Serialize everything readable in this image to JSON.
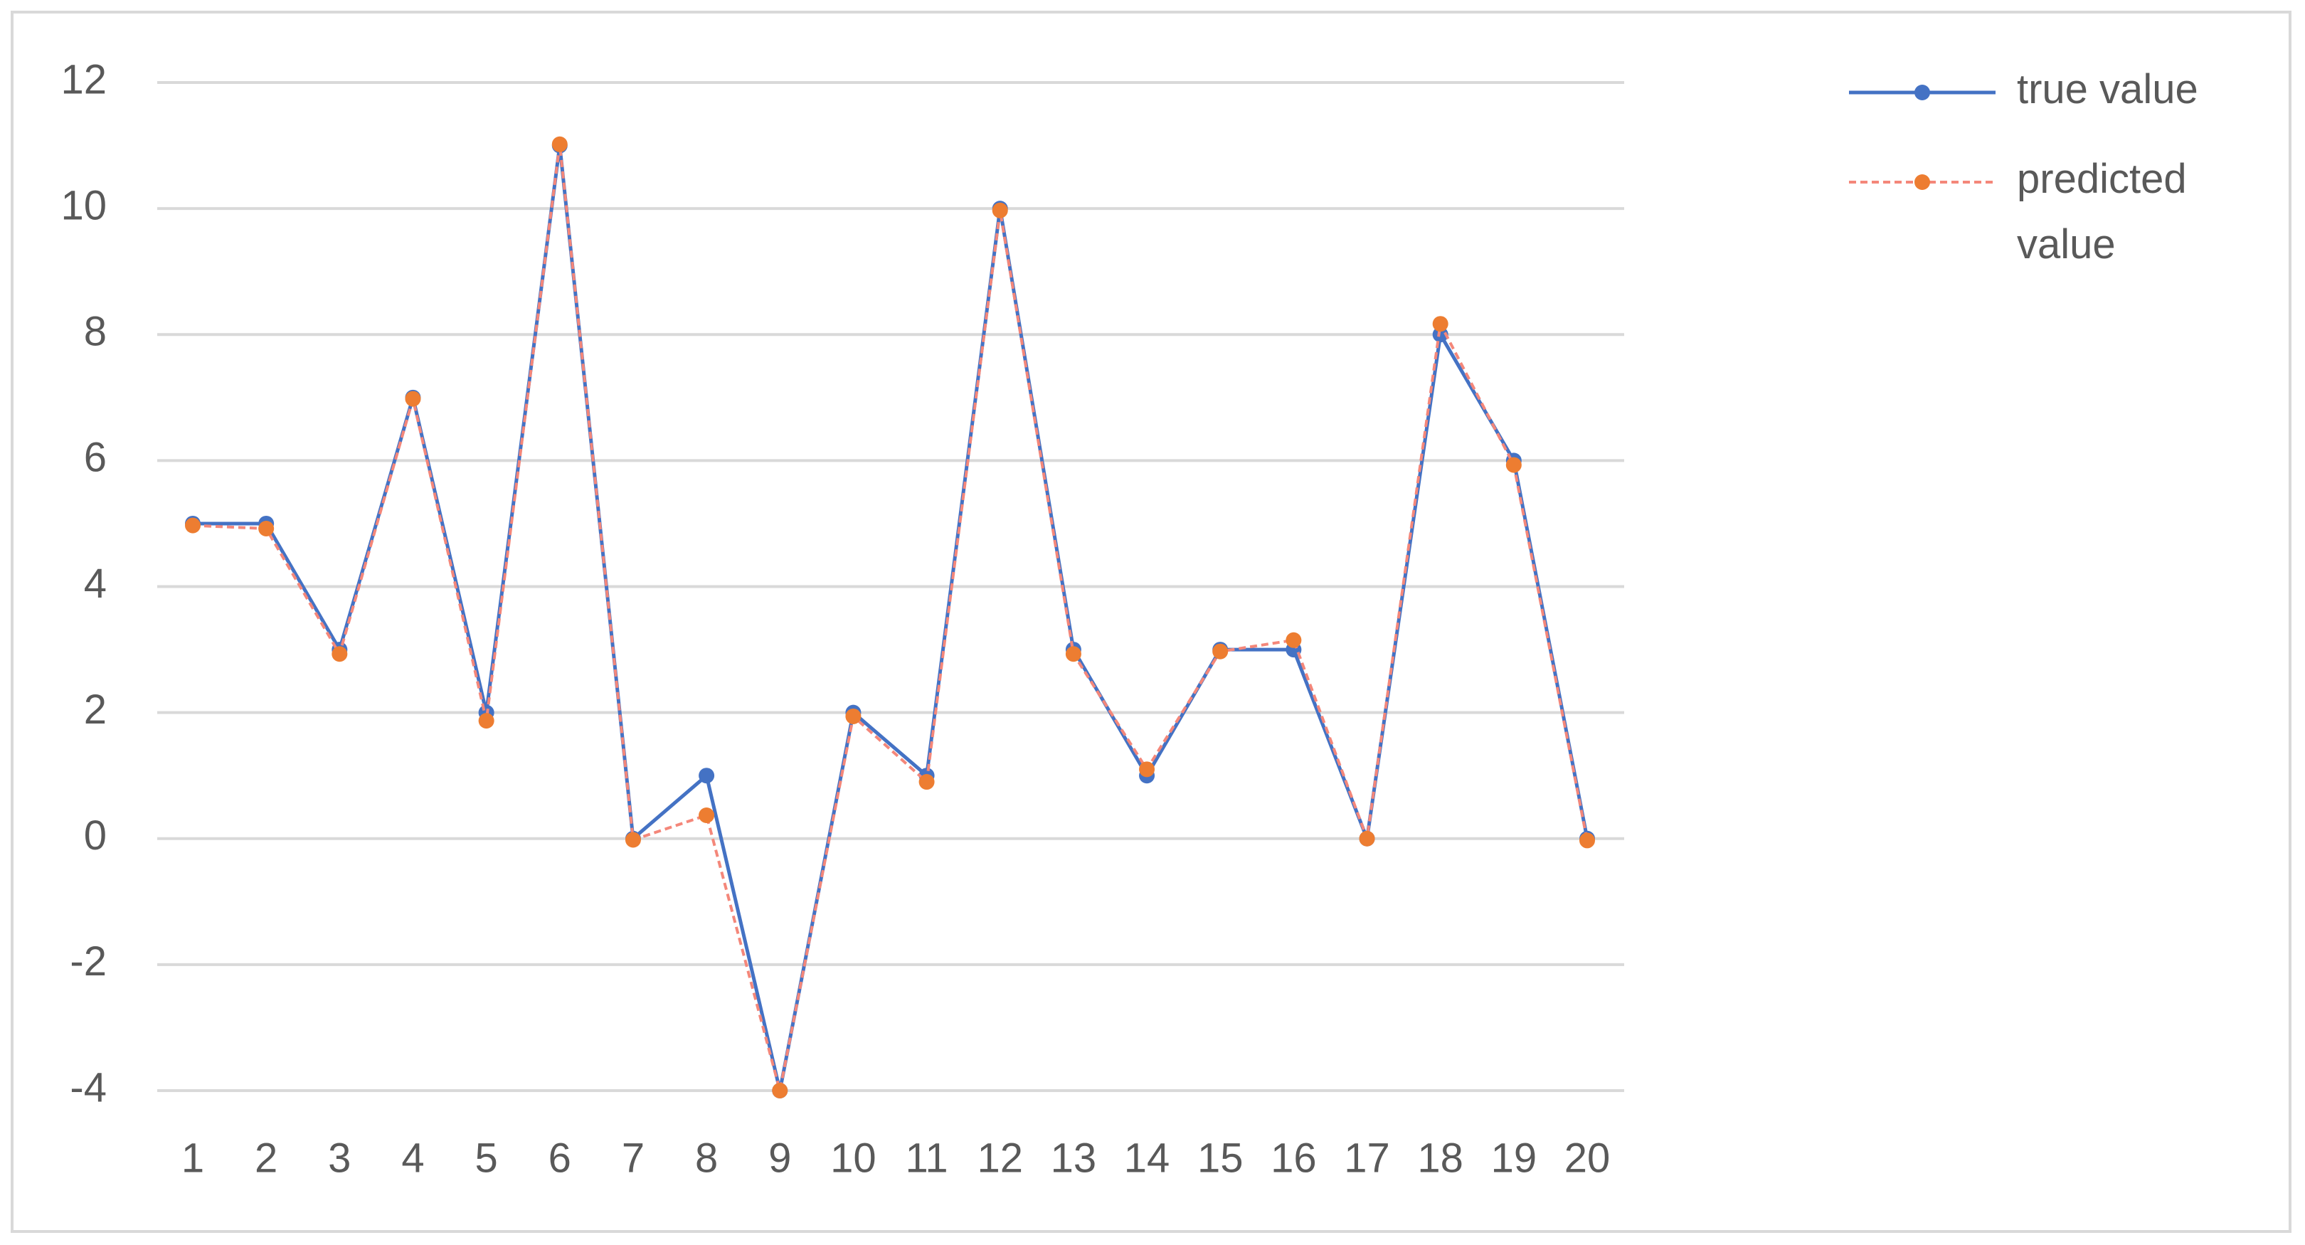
{
  "chart_data": {
    "type": "line",
    "categories": [
      "1",
      "2",
      "3",
      "4",
      "5",
      "6",
      "7",
      "8",
      "9",
      "10",
      "11",
      "12",
      "13",
      "14",
      "15",
      "16",
      "17",
      "18",
      "19",
      "20"
    ],
    "series": [
      {
        "name": "true value",
        "color": "#4472c4",
        "dashed": false,
        "values": [
          5,
          5,
          3,
          7,
          2,
          11,
          0,
          1,
          -4,
          2,
          1,
          10,
          3,
          1,
          3,
          3,
          0,
          8,
          6,
          0
        ]
      },
      {
        "name": "predicted value",
        "color": "#ed7d31",
        "line_color": "#f4877a",
        "dashed": true,
        "values": [
          4.97,
          4.92,
          2.93,
          6.98,
          1.87,
          11.02,
          -0.02,
          0.37,
          -4.0,
          1.94,
          0.9,
          9.97,
          2.93,
          1.1,
          2.97,
          3.15,
          0.0,
          8.17,
          5.93,
          -0.03
        ]
      }
    ],
    "ylim": [
      -4,
      12
    ],
    "yticks": [
      -4,
      -2,
      0,
      2,
      4,
      6,
      8,
      10,
      12
    ],
    "grid": true,
    "legend": "right"
  }
}
